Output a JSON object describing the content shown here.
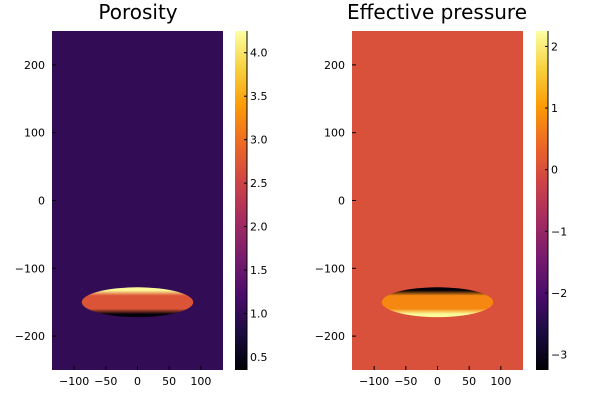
{
  "colors": {
    "inferno": [
      "#000004",
      "#1b0c41",
      "#4a0c6b",
      "#781c6d",
      "#a52c60",
      "#cf4446",
      "#ed6925",
      "#fb9b06",
      "#f7d13d",
      "#fcffa4"
    ],
    "porosity_background": "#330a5f",
    "pressure_background": "#db503b"
  },
  "chart_data": [
    {
      "type": "heatmap",
      "title": "Porosity",
      "xlabel": "",
      "ylabel": "",
      "xlim": [
        -135,
        135
      ],
      "ylim": [
        -250,
        250
      ],
      "x_ticks": [
        -100,
        -50,
        0,
        50,
        100
      ],
      "y_ticks": [
        -200,
        -100,
        0,
        100,
        200
      ],
      "x_tick_labels": [
        "−100",
        "−50",
        "0",
        "50",
        "100"
      ],
      "y_tick_labels": [
        "−200",
        "−100",
        "0",
        "100",
        "200"
      ],
      "colormap": "inferno",
      "colorbar": {
        "min": 0.35,
        "max": 4.25,
        "ticks": [
          0.5,
          1.0,
          1.5,
          2.0,
          2.5,
          3.0,
          3.5,
          4.0
        ],
        "tick_labels": [
          "0.5",
          "1.0",
          "1.5",
          "2.0",
          "2.5",
          "3.0",
          "3.5",
          "4.0"
        ]
      },
      "background_value": 1.0,
      "inclusion": {
        "center": [
          0,
          -150
        ],
        "semi_axes": [
          88,
          22
        ],
        "top_rim_value": 4.2,
        "interior_value": 2.7,
        "bottom_rim_value": 0.4
      }
    },
    {
      "type": "heatmap",
      "title": "Effective pressure",
      "xlabel": "",
      "ylabel": "",
      "xlim": [
        -135,
        135
      ],
      "ylim": [
        -250,
        250
      ],
      "x_ticks": [
        -100,
        -50,
        0,
        50,
        100
      ],
      "y_ticks": [
        -200,
        -100,
        0,
        100,
        200
      ],
      "x_tick_labels": [
        "−100",
        "−50",
        "0",
        "50",
        "100"
      ],
      "y_tick_labels": [
        "−200",
        "−100",
        "0",
        "100",
        "200"
      ],
      "colormap": "inferno",
      "colorbar": {
        "min": -3.25,
        "max": 2.25,
        "ticks": [
          -3,
          -2,
          -1,
          0,
          1,
          2
        ],
        "tick_labels": [
          "−3",
          "−2",
          "−1",
          "0",
          "1",
          "2"
        ]
      },
      "background_value": 0.0,
      "inclusion": {
        "center": [
          0,
          -150
        ],
        "semi_axes": [
          88,
          22
        ],
        "top_rim_value": -3.2,
        "interior_value": 0.8,
        "bottom_rim_value": 2.2
      }
    }
  ]
}
